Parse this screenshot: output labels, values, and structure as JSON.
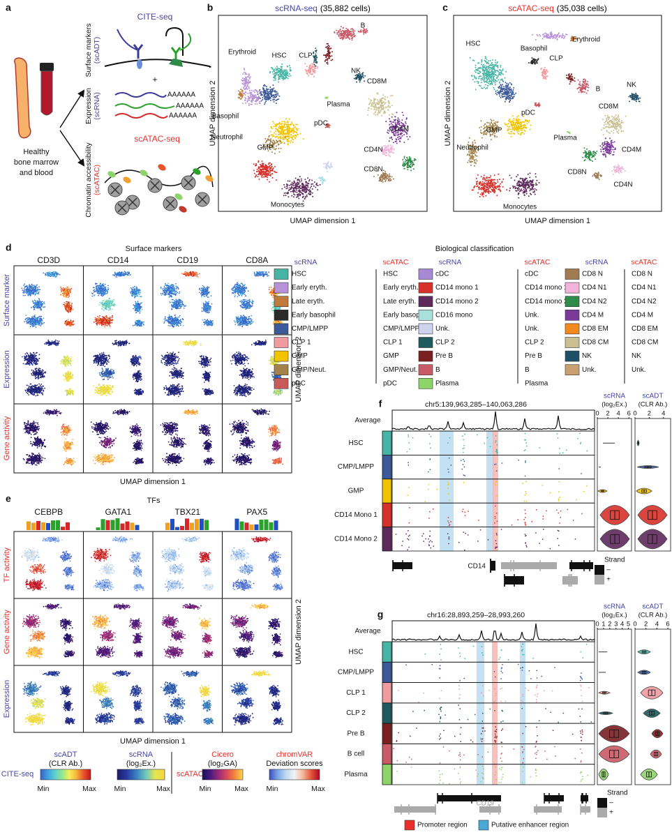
{
  "panel_a": {
    "label": "a",
    "tissue": [
      "Healthy",
      "bone marrow",
      "and blood"
    ],
    "cite_title": "CITE-seq",
    "surface_label": "Surface markers",
    "surface_sub": "(scADT)",
    "plus": "+",
    "expression_label": "Expression",
    "expression_sub": "(scRNA)",
    "polya": [
      "AAAAAA",
      "AAAAAA",
      "AAAAAA"
    ],
    "atac_title": "scATAC-seq",
    "chromatin_label": "Chromatin accessibility",
    "chromatin_sub": "(scATAC)"
  },
  "panel_b": {
    "label": "b",
    "title_assay": "scRNA-seq",
    "title_count": "(35,882 cells)",
    "x_axis": "UMAP dimension 1",
    "y_axis": "UMAP dimension 2",
    "cluster_labels": [
      "B",
      "Erythroid",
      "HSC",
      "CLP",
      "NK",
      "CD8M",
      "Plasma",
      "Basophil",
      "pDC",
      "CD4M",
      "Neutrophil",
      "GMP",
      "CD4N",
      "CD8N",
      "Monocytes"
    ]
  },
  "panel_c": {
    "label": "c",
    "title_assay": "scATAC-seq",
    "title_count": "(35,038 cells)",
    "x_axis": "UMAP dimension 1",
    "y_axis": "UMAP dimension 2",
    "cluster_labels": [
      "HSC",
      "Erythroid",
      "Basophil",
      "CLP",
      "B",
      "NK",
      "pDC",
      "CD8M",
      "GMP",
      "Neutrophil",
      "Plasma",
      "CD4M",
      "CD8N",
      "CD4N",
      "Monocytes"
    ]
  },
  "panel_d": {
    "label": "d",
    "title": "Surface markers",
    "columns": [
      "CD3D",
      "CD14",
      "CD19",
      "CD8A"
    ],
    "rows": [
      "Surface marker",
      "Expression",
      "Gene activity"
    ],
    "x_axis": "UMAP dimension 1",
    "y_axis": "UMAP dimension 2"
  },
  "classification": {
    "title": "Biological classification",
    "groups": [
      {
        "header_scrna": "scRNA",
        "header_scatac": "scATAC",
        "items": [
          {
            "scrna": "HSC",
            "scatac": "HSC",
            "color": "#46b5a5"
          },
          {
            "scrna": "Early eryth.",
            "scatac": "Early eryth.",
            "color": "#b892d8"
          },
          {
            "scrna": "Late eryth.",
            "scatac": "Late eryth.",
            "color": "#c07a3c"
          },
          {
            "scrna": "Early basophil",
            "scatac": "Early basophil",
            "color": "#2a2a2a"
          },
          {
            "scrna": "CMP/LMPP",
            "scatac": "CMP/LMPP",
            "color": "#3c5a9a"
          },
          {
            "scrna": "CLP 1",
            "scatac": "CLP 1",
            "color": "#f09ba0"
          },
          {
            "scrna": "GMP",
            "scatac": "GMP",
            "color": "#f2c400"
          },
          {
            "scrna": "GMP/Neut.",
            "scatac": "GMP/Neut.",
            "color": "#a3834a"
          },
          {
            "scrna": "pDC",
            "scatac": "pDC",
            "color": "#c95a5a"
          }
        ]
      },
      {
        "header_scrna": "scRNA",
        "header_scatac": "scATAC",
        "items": [
          {
            "scrna": "cDC",
            "scatac": "cDC",
            "color": "#a78ad6"
          },
          {
            "scrna": "CD14 mono 1",
            "scatac": "CD14 mono 1",
            "color": "#d6312b"
          },
          {
            "scrna": "CD14 mono 2",
            "scatac": "CD14 mono 2",
            "color": "#5e2a5c"
          },
          {
            "scrna": "CD16 mono",
            "scatac": "Unk.",
            "color": "#a8e0dc"
          },
          {
            "scrna": "Unk.",
            "scatac": "Unk.",
            "color": "#cfd3ee"
          },
          {
            "scrna": "CLP 2",
            "scatac": "CLP 2",
            "color": "#1e5a5e"
          },
          {
            "scrna": "Pre B",
            "scatac": "Pre B",
            "color": "#7a1f22"
          },
          {
            "scrna": "B",
            "scatac": "B",
            "color": "#c95a68"
          },
          {
            "scrna": "Plasma",
            "scatac": "Plasma",
            "color": "#8fd36b"
          }
        ]
      },
      {
        "header_scrna": "scRNA",
        "header_scatac": "scATAC",
        "items": [
          {
            "scrna": "CD8 N",
            "scatac": "CD8 N",
            "color": "#a07a50"
          },
          {
            "scrna": "CD4 N1",
            "scatac": "CD4 N1",
            "color": "#f2b5d9"
          },
          {
            "scrna": "CD4 N2",
            "scatac": "CD4 N2",
            "color": "#2e8b4a"
          },
          {
            "scrna": "CD4 M",
            "scatac": "CD4 M",
            "color": "#7a3a9a"
          },
          {
            "scrna": "CD8 EM",
            "scatac": "CD8 EM",
            "color": "#f08a1e"
          },
          {
            "scrna": "CD8 CM",
            "scatac": "CD8 CM",
            "color": "#c8c090"
          },
          {
            "scrna": "NK",
            "scatac": "NK",
            "color": "#1f4f66"
          },
          {
            "scrna": "Unk.",
            "scatac": "Unk.",
            "color": "#c9a070"
          }
        ]
      }
    ]
  },
  "panel_e": {
    "label": "e",
    "title": "TFs",
    "columns": [
      "CEBPB",
      "GATA1",
      "TBX21",
      "PAX5"
    ],
    "rows": [
      "TF activity",
      "Gene activity",
      "Expression"
    ],
    "x_axis": "UMAP dimension 1",
    "y_axis": "UMAP dimension 2"
  },
  "scale_legend": {
    "cite": "CITE-seq",
    "atac": "scATAC-seq",
    "bars": [
      {
        "title": "scADT",
        "subtitle": "(CLR Ab.)",
        "min": "Min",
        "max": "Max"
      },
      {
        "title": "scRNA",
        "subtitle": "(log₂Ex.)",
        "min": "Min",
        "max": "Max"
      },
      {
        "title": "Cicero",
        "subtitle": "(log₂GA)",
        "min": "Min",
        "max": "Max"
      },
      {
        "title": "chromVAR",
        "subtitle": "Deviation scores",
        "min": "Min",
        "max": "Max"
      }
    ]
  },
  "panel_f": {
    "label": "f",
    "region": "chr5:139,963,285–140,063,286",
    "average": "Average",
    "rows": [
      {
        "name": "HSC",
        "color": "#46b5a5"
      },
      {
        "name": "CMP/LMPP",
        "color": "#3c5a9a"
      },
      {
        "name": "GMP",
        "color": "#f2c400"
      },
      {
        "name": "CD14 Mono 1",
        "color": "#d6312b"
      },
      {
        "name": "CD14 Mono 2",
        "color": "#5e2a5c"
      }
    ],
    "scrna_title": "scRNA",
    "scrna_unit": "(log₂Ex.)",
    "scrna_lim": [
      0,
      6.5
    ],
    "scrna_ticks": [
      0,
      2,
      4,
      6
    ],
    "scadt_title": "scADT",
    "scadt_unit": "(CLR Ab.)",
    "scadt_lim": [
      0,
      5
    ],
    "scadt_ticks": [
      0,
      2,
      4
    ],
    "gene": "CD14",
    "strand_title": "Strand",
    "strand_minus": "–",
    "strand_plus": "+"
  },
  "panel_g": {
    "label": "g",
    "region": "chr16:28,893,259–28,993,260",
    "average": "Average",
    "rows": [
      {
        "name": "HSC",
        "color": "#46b5a5"
      },
      {
        "name": "CMP/LMPP",
        "color": "#3c5a9a"
      },
      {
        "name": "CLP 1",
        "color": "#f09ba0"
      },
      {
        "name": "CLP 2",
        "color": "#1e5a5e"
      },
      {
        "name": "Pre B",
        "color": "#7a1f22"
      },
      {
        "name": "B cell",
        "color": "#c95a68"
      },
      {
        "name": "Plasma",
        "color": "#8fd36b"
      }
    ],
    "scrna_title": "scRNA",
    "scrna_unit": "(log₂Ex.)",
    "scrna_lim": [
      0,
      5.5
    ],
    "scrna_ticks": [
      0,
      1,
      2,
      3,
      4,
      5
    ],
    "scadt_title": "scADT",
    "scadt_unit": "(CLR Ab.)",
    "scadt_lim": [
      0,
      6.5
    ],
    "scadt_ticks": [
      0,
      2,
      4,
      6
    ],
    "gene": "CD19",
    "strand_title": "Strand",
    "strand_minus": "–",
    "strand_plus": "+"
  },
  "region_legend": {
    "promoter": "Promoter region",
    "enhancer": "Putative enhancer region"
  }
}
